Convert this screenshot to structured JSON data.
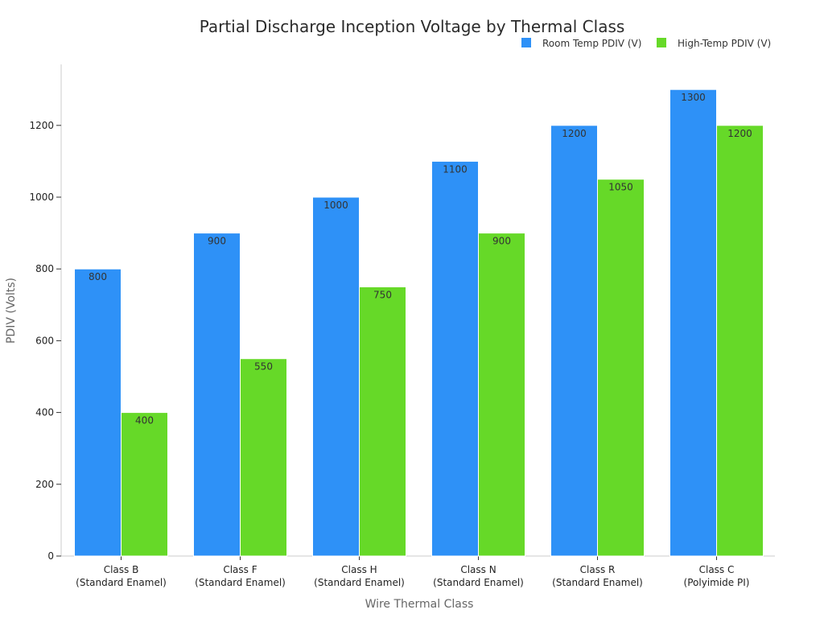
{
  "chart_data": {
    "type": "bar",
    "title": "Partial Discharge Inception Voltage by Thermal Class",
    "xlabel": "Wire Thermal Class",
    "ylabel": "PDIV (Volts)",
    "categories": [
      [
        "Class B",
        "(Standard Enamel)"
      ],
      [
        "Class F",
        "(Standard Enamel)"
      ],
      [
        "Class H",
        "(Standard Enamel)"
      ],
      [
        "Class N",
        "(Standard Enamel)"
      ],
      [
        "Class R",
        "(Standard Enamel)"
      ],
      [
        "Class C",
        "(Polyimide PI)"
      ]
    ],
    "series": [
      {
        "name": "Room Temp PDIV (V)",
        "color": "#2e91f7",
        "values": [
          800,
          900,
          1000,
          1100,
          1200,
          1300
        ]
      },
      {
        "name": "High-Temp PDIV (V)",
        "color": "#66d928",
        "values": [
          400,
          550,
          750,
          900,
          1050,
          1200
        ]
      }
    ],
    "ylim": [
      0,
      1370
    ],
    "yticks": [
      0,
      200,
      400,
      600,
      800,
      1000,
      1200
    ],
    "grid": false,
    "legend_position": "top-right",
    "data_labels": true
  }
}
